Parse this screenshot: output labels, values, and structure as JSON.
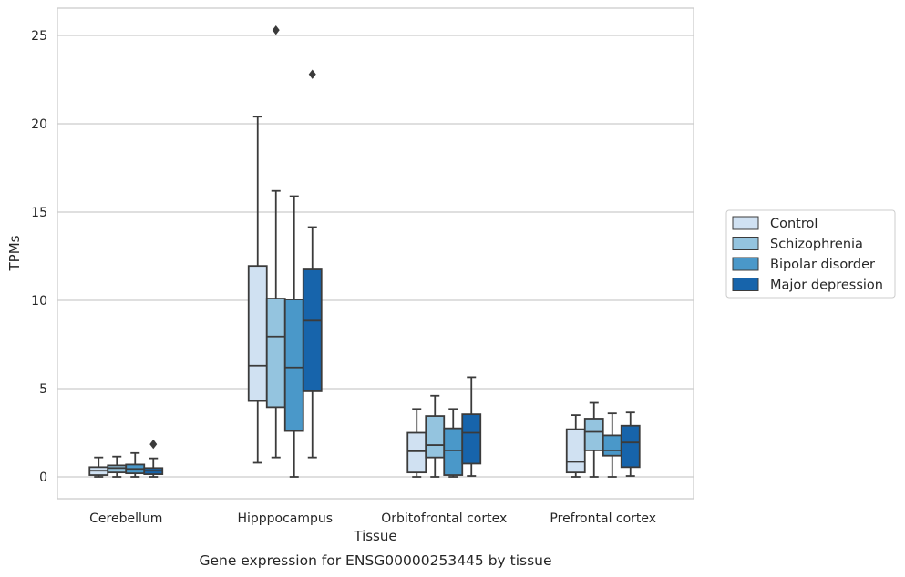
{
  "chart_data": {
    "type": "boxplot",
    "xlabel": "Tissue",
    "ylabel": "TPMs",
    "caption": "Gene expression for ENSG00000253445 by tissue",
    "ylim": [
      -1.2,
      26.5
    ],
    "yticks": [
      0,
      5,
      10,
      15,
      20,
      25
    ],
    "grid": "horizontal",
    "legend_position": "right",
    "categories": [
      "Cerebellum",
      "Hipppocampus",
      "Orbitofrontal cortex",
      "Prefrontal cortex"
    ],
    "series": [
      {
        "name": "Control",
        "color": "#d0e1f2",
        "boxes": [
          {
            "whislo": 0.0,
            "q1": 0.1,
            "med": 0.35,
            "q3": 0.55,
            "whishi": 1.1,
            "fliers": []
          },
          {
            "whislo": 0.8,
            "q1": 4.3,
            "med": 6.3,
            "q3": 11.95,
            "whishi": 20.4,
            "fliers": []
          },
          {
            "whislo": 0.0,
            "q1": 0.25,
            "med": 1.45,
            "q3": 2.5,
            "whishi": 3.85,
            "fliers": []
          },
          {
            "whislo": 0.0,
            "q1": 0.25,
            "med": 0.85,
            "q3": 2.7,
            "whishi": 3.5,
            "fliers": []
          }
        ]
      },
      {
        "name": "Schizophrenia",
        "color": "#94c4df",
        "boxes": [
          {
            "whislo": 0.0,
            "q1": 0.25,
            "med": 0.5,
            "q3": 0.65,
            "whishi": 1.15,
            "fliers": []
          },
          {
            "whislo": 1.1,
            "q1": 3.95,
            "med": 7.95,
            "q3": 10.1,
            "whishi": 16.2,
            "fliers": [
              25.3
            ]
          },
          {
            "whislo": 0.0,
            "q1": 1.1,
            "med": 1.8,
            "q3": 3.45,
            "whishi": 4.6,
            "fliers": []
          },
          {
            "whislo": 0.0,
            "q1": 1.5,
            "med": 2.55,
            "q3": 3.3,
            "whishi": 4.2,
            "fliers": []
          }
        ]
      },
      {
        "name": "Bipolar disorder",
        "color": "#4a98c9",
        "boxes": [
          {
            "whislo": 0.0,
            "q1": 0.2,
            "med": 0.45,
            "q3": 0.7,
            "whishi": 1.35,
            "fliers": []
          },
          {
            "whislo": 0.0,
            "q1": 2.6,
            "med": 6.2,
            "q3": 10.05,
            "whishi": 15.9,
            "fliers": []
          },
          {
            "whislo": 0.0,
            "q1": 0.1,
            "med": 1.5,
            "q3": 2.75,
            "whishi": 3.85,
            "fliers": []
          },
          {
            "whislo": 0.0,
            "q1": 1.2,
            "med": 1.5,
            "q3": 2.35,
            "whishi": 3.6,
            "fliers": []
          }
        ]
      },
      {
        "name": "Major depression",
        "color": "#1764ab",
        "boxes": [
          {
            "whislo": 0.0,
            "q1": 0.15,
            "med": 0.35,
            "q3": 0.5,
            "whishi": 1.05,
            "fliers": [
              1.85
            ]
          },
          {
            "whislo": 1.1,
            "q1": 4.85,
            "med": 8.85,
            "q3": 11.75,
            "whishi": 14.15,
            "fliers": [
              22.8
            ]
          },
          {
            "whislo": 0.05,
            "q1": 0.75,
            "med": 2.5,
            "q3": 3.55,
            "whishi": 5.65,
            "fliers": []
          },
          {
            "whislo": 0.05,
            "q1": 0.55,
            "med": 1.95,
            "q3": 2.9,
            "whishi": 3.65,
            "fliers": []
          }
        ]
      }
    ]
  },
  "style": {
    "edge_color": "#3b3b3b",
    "grid_color": "#cccccc",
    "frame_color": "#cccccc"
  }
}
